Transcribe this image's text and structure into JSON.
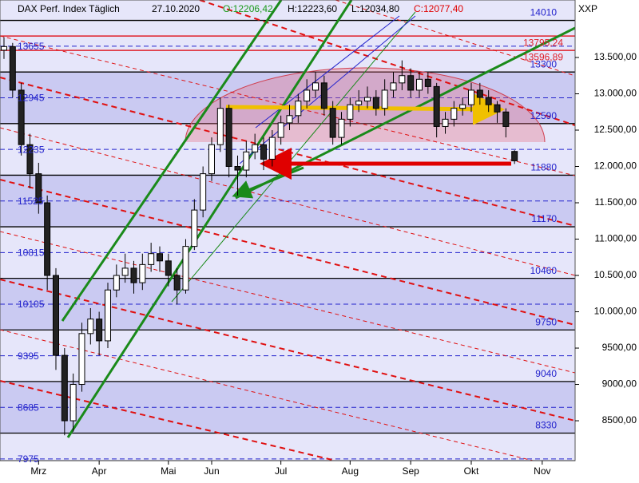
{
  "chart_data": {
    "type": "candlestick",
    "title": "DAX Perf. Index Täglich",
    "date": "27.10.2020",
    "quote": [
      "O:12206,42",
      "H:12223,60",
      "L:12034,80",
      "C:12077,40"
    ],
    "symbol": "XXP",
    "xlim": [
      -0.46,
      66.0
    ],
    "xticks": [
      {
        "value": 4,
        "label": "Mrz"
      },
      {
        "value": 11,
        "label": "Apr"
      },
      {
        "value": 19,
        "label": "Mai"
      },
      {
        "value": 24,
        "label": "Jun"
      },
      {
        "value": 32,
        "label": "Jul"
      },
      {
        "value": 40,
        "label": "Aug"
      },
      {
        "value": 47,
        "label": "Sep"
      },
      {
        "value": 54,
        "label": "Okt"
      },
      {
        "value": 62.2,
        "label": "Nov"
      }
    ],
    "ylim": [
      7951,
      14291
    ],
    "yticks": [
      {
        "value": 8500,
        "label": "8500,00"
      },
      {
        "value": 9000,
        "label": "9000,00"
      },
      {
        "value": 9500,
        "label": "9500,00"
      },
      {
        "value": 10000,
        "label": "10.000,00"
      },
      {
        "value": 10500,
        "label": "10.500,00"
      },
      {
        "value": 11000,
        "label": "11.000,00"
      },
      {
        "value": 11500,
        "label": "11.500,00"
      },
      {
        "value": 12000,
        "label": "12.000,00"
      },
      {
        "value": 12500,
        "label": "12.500,00"
      },
      {
        "value": 13000,
        "label": "13.000,00"
      },
      {
        "value": 13500,
        "label": "13.500,00"
      }
    ],
    "up_color": "#ffffff",
    "down_color": "#222222",
    "open": [
      13600,
      13650,
      13050,
      12300,
      11900,
      11500,
      10500,
      9400,
      8500,
      9000,
      9700,
      9900,
      9600,
      10300,
      10500,
      10600,
      10400,
      10650,
      10800,
      10700,
      10500,
      10300,
      10900,
      11400,
      11900,
      12300,
      12800,
      12000,
      11950,
      12200,
      12300,
      12100,
      12400,
      12600,
      12700,
      12900,
      13050,
      13150,
      12800,
      12400,
      12650,
      12850,
      12900,
      12950,
      12800,
      13050,
      13150,
      13250,
      13050,
      13200,
      13100,
      12550,
      12650,
      12800,
      12850,
      13050,
      12950,
      12850,
      12750,
      12206.42
    ],
    "high": [
      13780,
      13700,
      13150,
      12450,
      12050,
      11600,
      10600,
      9500,
      9150,
      9850,
      10050,
      10000,
      10400,
      10650,
      10800,
      10700,
      10800,
      10950,
      10900,
      10800,
      10600,
      11000,
      11550,
      12000,
      12400,
      12950,
      12850,
      12150,
      12350,
      12450,
      12400,
      12500,
      12700,
      12850,
      13000,
      13200,
      13300,
      13250,
      12900,
      12750,
      12950,
      13050,
      13100,
      13050,
      13200,
      13300,
      13460,
      13350,
      13300,
      13300,
      13150,
      12750,
      12900,
      12950,
      13150,
      13150,
      13050,
      12900,
      12800,
      12223.6
    ],
    "low": [
      13480,
      12950,
      12150,
      11700,
      11350,
      10300,
      9200,
      8300,
      8350,
      8900,
      9550,
      9400,
      9500,
      10200,
      10400,
      10250,
      10300,
      10550,
      10550,
      10350,
      10100,
      10250,
      10850,
      11300,
      11800,
      12200,
      11850,
      11600,
      11850,
      12100,
      11950,
      12000,
      12300,
      12500,
      12600,
      12800,
      12950,
      12700,
      12300,
      12300,
      12550,
      12750,
      12800,
      12700,
      12700,
      12950,
      13050,
      12950,
      12950,
      13000,
      12400,
      12450,
      12550,
      12700,
      12750,
      12850,
      12750,
      12600,
      12400,
      12034.8
    ],
    "close": [
      13650,
      13050,
      12300,
      11900,
      11500,
      10500,
      9400,
      8500,
      9000,
      9700,
      9900,
      9600,
      10300,
      10500,
      10600,
      10400,
      10650,
      10800,
      10700,
      10500,
      10300,
      10900,
      11400,
      11900,
      12300,
      12800,
      12000,
      11950,
      12200,
      12300,
      12100,
      12400,
      12600,
      12700,
      12900,
      13050,
      13150,
      12800,
      12400,
      12650,
      12850,
      12900,
      12950,
      12800,
      13050,
      13150,
      13250,
      13050,
      13200,
      13100,
      12550,
      12650,
      12800,
      12850,
      13050,
      12950,
      12850,
      12750,
      12550,
      12077.4
    ],
    "levels_left": [
      13655,
      12945,
      12235,
      11525,
      10815,
      10105,
      9395,
      8685,
      7975
    ],
    "levels_right": [
      14010,
      13300,
      12590,
      11880,
      11170,
      10460,
      9750,
      9040,
      8330
    ],
    "level_color": "#2222cc",
    "band_colors": [
      "#e6e6fa",
      "#cacaf2"
    ],
    "red_levels": [
      {
        "value": 13795.24,
        "label": "13795,24"
      },
      {
        "value": 13596.89,
        "label": "13596,89"
      }
    ],
    "red_level_color": "#e0202a"
  }
}
